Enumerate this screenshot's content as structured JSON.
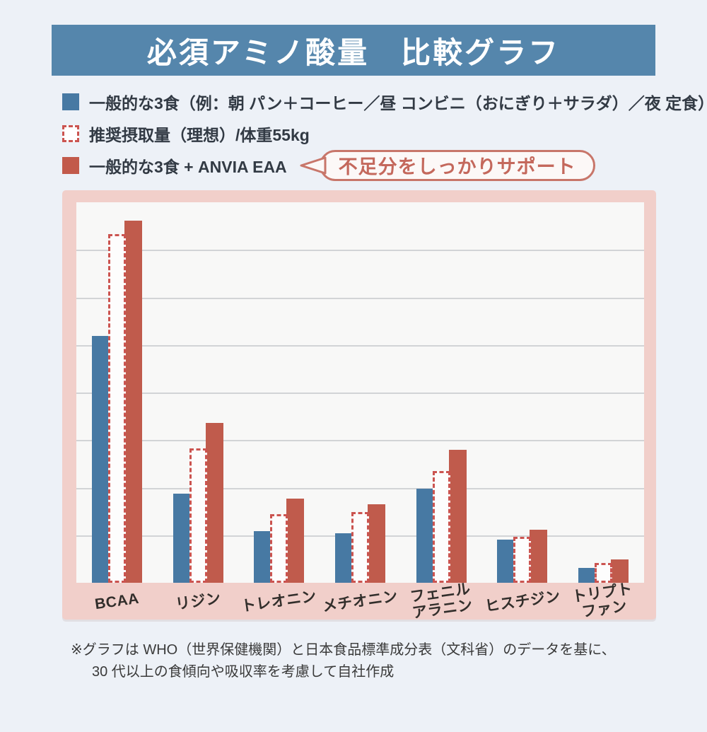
{
  "title": "必須アミノ酸量　比較グラフ",
  "legend": {
    "items": [
      {
        "swatch": "blue-solid",
        "label": "一般的な3食（例：朝 パン＋コーヒー／昼 コンビニ（おにぎり＋サラダ）／夜 定食）"
      },
      {
        "swatch": "dashed-outline",
        "label": "推奨摂取量（理想）/体重55kg"
      },
      {
        "swatch": "red-solid",
        "label": "一般的な3食 + ANVIA EAA"
      }
    ],
    "callout": "不足分をしっかりサポート"
  },
  "chart_data": {
    "type": "bar",
    "title": "必須アミノ酸量　比較グラフ",
    "categories": [
      "BCAA",
      "リジン",
      "トレオニン",
      "メチオニン",
      "フェニルアラニン",
      "ヒスチジン",
      "トリプトファン"
    ],
    "category_label_lines": [
      [
        "BCAA"
      ],
      [
        "リジン"
      ],
      [
        "トレオニン"
      ],
      [
        "メチオニン"
      ],
      [
        "フェニル",
        "アラニン"
      ],
      [
        "ヒスチジン"
      ],
      [
        "トリプト",
        "ファン"
      ]
    ],
    "series": [
      {
        "name": "一般的な3食（例：朝 パン＋コーヒー／昼 コンビニ（おにぎり＋サラダ）／夜 定食）",
        "style": "solid",
        "color": "#4779a3",
        "values": [
          5.19,
          1.87,
          1.09,
          1.04,
          1.98,
          0.91,
          0.31
        ]
      },
      {
        "name": "推奨摂取量（理想）/体重55kg",
        "style": "dashed",
        "color": "#cb5450",
        "values": [
          7.33,
          2.83,
          1.44,
          1.49,
          2.35,
          0.97,
          0.42
        ]
      },
      {
        "name": "一般的な3食 + ANVIA EAA",
        "style": "solid",
        "color": "#c05b4c",
        "values": [
          7.61,
          3.36,
          1.77,
          1.65,
          2.8,
          1.12,
          0.49
        ]
      }
    ],
    "xlabel": "",
    "ylabel": "",
    "ylim": [
      0,
      8
    ],
    "grid": "horizontal gridlines at every 1 unit (7 lines), no numeric axis labels shown",
    "legend_position": "above chart",
    "unit_note": "relative units estimated from gridline spacing; chart shows no numeric scale"
  },
  "footnote": {
    "line1": "※グラフは WHO（世界保健機関）と日本食品標準成分表（文科省）のデータを基に、",
    "line2": "30 代以上の食傾向や吸収率を考慮して自社作成"
  },
  "colors": {
    "page_background": "#edf1f7",
    "banner_background": "#5586ac",
    "banner_text": "#ffffff",
    "bar_blue": "#4779a3",
    "bar_red": "#c05b4c",
    "dashed_outline": "#cb5450",
    "panel_pink": "#f1cfca",
    "plot_background": "#f8f8f7",
    "gridline": "#d2d4d6",
    "callout_accent": "#c4685c"
  }
}
